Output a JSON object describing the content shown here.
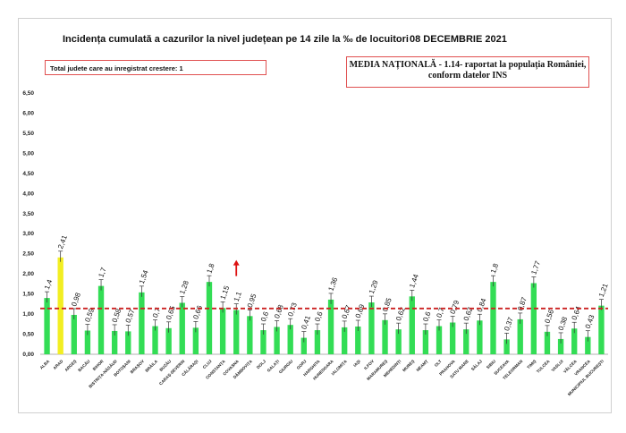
{
  "header": {
    "title": "Incidența cumulată a cazurilor la nivel județean pe 14 zile la ‰ de locuitori",
    "date": "08 DECEMBRIE 2021"
  },
  "notes": {
    "increase_count": "Total judete care au inregistrat crestere: 1",
    "national_line1": "MEDIA NAȚIONALĂ - 1.14-  raportat la populația României,",
    "national_line2": "conform datelor INS"
  },
  "colors": {
    "bar": "#33dd55",
    "highlight": "#f2ee22",
    "average_line": "#cc2222",
    "arrow": "#dd1111",
    "errorbar": "#333333"
  },
  "chart_data": {
    "type": "bar",
    "categories": [
      "ALBA",
      "ARAD",
      "ARGEȘ",
      "BACĂU",
      "BIHOR",
      "BISTRIȚA-NĂSĂUD",
      "BOTOȘANI",
      "BRAȘOV",
      "BRĂILA",
      "BUZĂU",
      "CARAȘ-SEVERIN",
      "CĂLĂRAȘI",
      "CLUJ",
      "CONSTANȚA",
      "COVASNA",
      "DÂMBOVIȚA",
      "DOLJ",
      "GALAȚI",
      "GIURGIU",
      "GORJ",
      "HARGHITA",
      "HUNEDOARA",
      "IALOMIȚA",
      "IAȘI",
      "ILFOV",
      "MARAMUREȘ",
      "MEHEDINȚI",
      "MUREȘ",
      "NEAMȚ",
      "OLT",
      "PRAHOVA",
      "SATU MARE",
      "SĂLAJ",
      "SIBIU",
      "SUCEAVA",
      "TELEORMAN",
      "TIMIȘ",
      "TULCEA",
      "VASLUI",
      "VÂLCEA",
      "VRANCEA",
      "MUNICIPIUL BUCUREȘTI"
    ],
    "values": [
      1.4,
      2.41,
      0.98,
      0.59,
      1.7,
      0.58,
      0.57,
      1.54,
      0.7,
      0.65,
      1.28,
      0.66,
      1.8,
      1.15,
      1.1,
      0.95,
      0.6,
      0.68,
      0.73,
      0.41,
      0.6,
      1.36,
      0.67,
      0.69,
      1.29,
      0.85,
      0.62,
      1.44,
      0.6,
      0.7,
      0.79,
      0.62,
      0.84,
      1.8,
      0.37,
      0.87,
      1.77,
      0.56,
      0.38,
      0.64,
      0.43,
      1.21
    ],
    "value_labels": [
      "1,4",
      "2,41",
      "0,98",
      "0,59",
      "1,7",
      "0,58",
      "0,57",
      "1,54",
      "0,7",
      "0,65",
      "1,28",
      "0,66",
      "1,8",
      "1,15",
      "1,1",
      "0,95",
      "0,6",
      "0,68",
      "0,73",
      "0,41",
      "0,6",
      "1,36",
      "0,67",
      "0,69",
      "1,29",
      "0,85",
      "0,62",
      "1,44",
      "0,6",
      "0,7",
      "0,79",
      "0,62",
      "0,84",
      "1,8",
      "0,37",
      "0,87",
      "1,77",
      "0,56",
      "0,38",
      "0,64",
      "0,43",
      "1,21"
    ],
    "highlight_index": 1,
    "increase_index": 14,
    "average": 1.14,
    "ylim": [
      0,
      6.5
    ],
    "yticks": [
      "0,00",
      "0,50",
      "1,00",
      "1,50",
      "2,00",
      "2,50",
      "3,00",
      "3,50",
      "4,00",
      "4,50",
      "5,00",
      "5,50",
      "6,00",
      "6,50"
    ]
  }
}
